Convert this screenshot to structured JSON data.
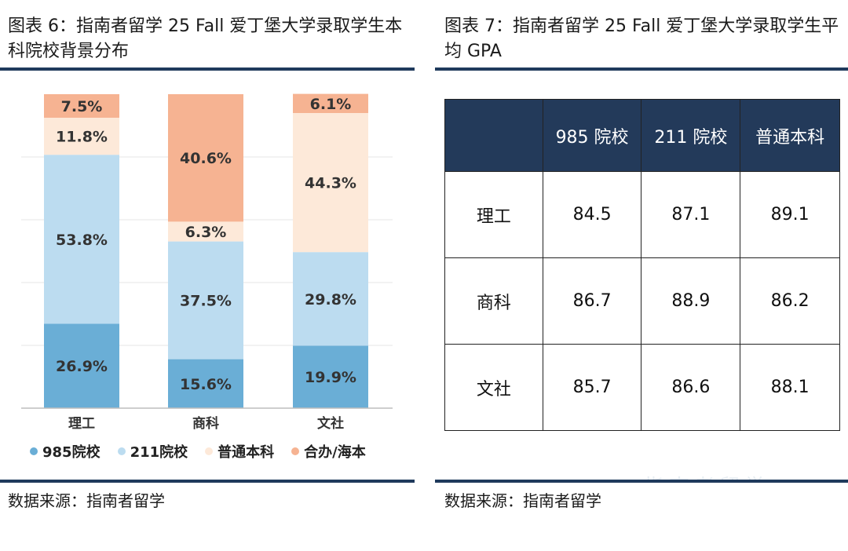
{
  "left_panel": {
    "title": "图表 6：指南者留学 25 Fall 爱丁堡大学录取学生本科院校背景分布",
    "source": "数据来源：指南者留学"
  },
  "right_panel": {
    "title": "图表 7：指南者留学 25 Fall 爱丁堡大学录取学生平均 GPA",
    "source": "数据来源：指南者留学"
  },
  "legend": [
    {
      "label": "985院校",
      "color": "#6aaed6"
    },
    {
      "label": "211院校",
      "color": "#bcdcf0"
    },
    {
      "label": "普通本科",
      "color": "#fde9d9"
    },
    {
      "label": "合办/海本",
      "color": "#f6b392"
    }
  ],
  "chart_data": [
    {
      "type": "bar",
      "stacked": true,
      "percent_stacked": true,
      "categories": [
        "理工",
        "商科",
        "文社"
      ],
      "series": [
        {
          "name": "985院校",
          "color": "#6aaed6",
          "values": [
            26.9,
            15.6,
            19.9
          ],
          "labels": [
            "26.9%",
            "15.6%",
            "19.9%"
          ]
        },
        {
          "name": "211院校",
          "color": "#bcdcf0",
          "values": [
            53.8,
            37.5,
            29.8
          ],
          "labels": [
            "53.8%",
            "37.5%",
            "29.8%"
          ]
        },
        {
          "name": "普通本科",
          "color": "#fde9d9",
          "values": [
            11.8,
            6.3,
            44.3
          ],
          "labels": [
            "11.8%",
            "6.3%",
            "44.3%"
          ]
        },
        {
          "name": "合办/海本",
          "color": "#f6b392",
          "values": [
            7.5,
            40.6,
            6.1
          ],
          "labels": [
            "7.5%",
            "40.6%",
            "6.1%"
          ]
        }
      ],
      "ylim": [
        0,
        100
      ],
      "grid": true,
      "legend_position": "bottom"
    },
    {
      "type": "table",
      "columns": [
        "",
        "985 院校",
        "211 院校",
        "普通本科"
      ],
      "rows": [
        {
          "label": "理工",
          "values": [
            "84.5",
            "87.1",
            "89.1"
          ]
        },
        {
          "label": "商科",
          "values": [
            "86.7",
            "88.9",
            "86.2"
          ]
        },
        {
          "label": "文社",
          "values": [
            "85.7",
            "86.6",
            "88.1"
          ]
        }
      ]
    }
  ],
  "watermark": "指南者留学"
}
